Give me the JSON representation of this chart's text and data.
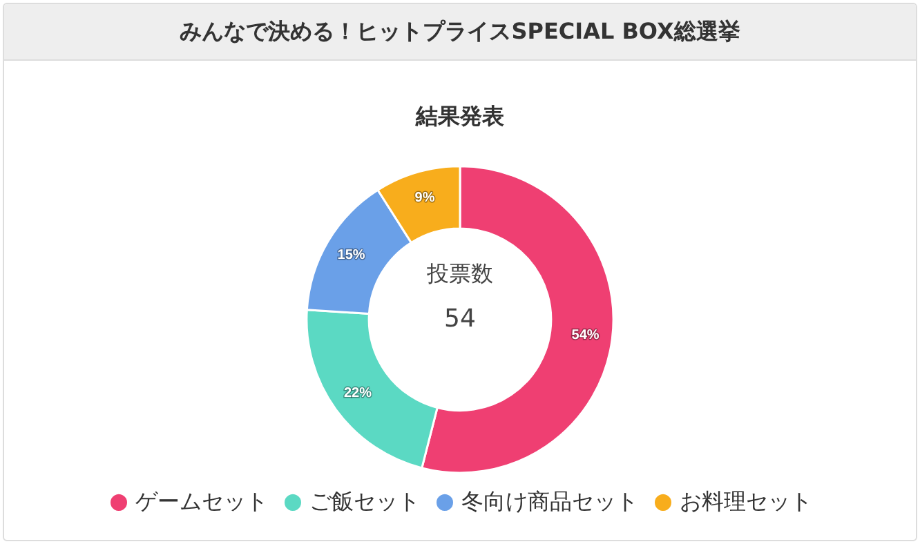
{
  "chart_data": {
    "type": "donut",
    "title": "みんなで決める！ヒットプライスSPECIAL BOX総選挙",
    "subtitle": "結果発表",
    "categories": [
      "ゲームセット",
      "ご飯セット",
      "冬向け商品セット",
      "お料理セット"
    ],
    "values": [
      54,
      22,
      15,
      9
    ],
    "value_labels": [
      "54%",
      "22%",
      "15%",
      "9%"
    ],
    "colors": [
      "#ef3f72",
      "#5bd9c3",
      "#6aa0e8",
      "#f8ad1c"
    ],
    "annotations": [
      "投票数",
      "54"
    ],
    "legend": "bottom"
  }
}
